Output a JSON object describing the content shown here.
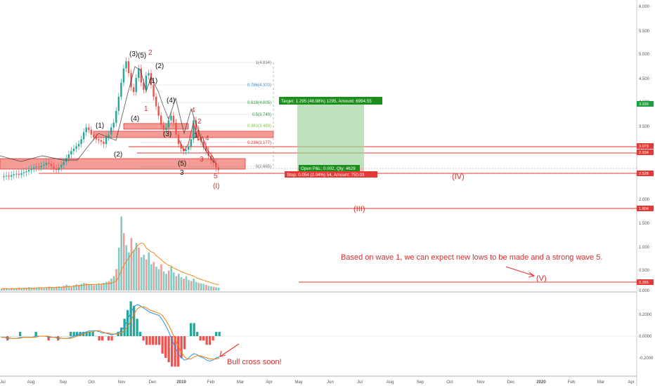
{
  "chart_data": {
    "type": "candlestick",
    "title": "",
    "colors": {
      "up": "#26a69a",
      "down": "#ef5350",
      "accent_red": "#e53935",
      "target_green": "#2e7d32",
      "ma_orange": "#f57c00",
      "macd_blue": "#2196f3"
    },
    "price_axis": {
      "ticks": [
        "6.000",
        "5.500",
        "5.000",
        "4.500",
        "4.000",
        "3.500",
        "3.000",
        "2.500",
        "2.000",
        "1.500",
        "1.000",
        "0.500",
        "0.000"
      ],
      "badges": [
        {
          "label": "3.939",
          "color": "#1b9e3e"
        },
        {
          "label": "3.073",
          "color": "#e53935"
        },
        {
          "label": "2.934",
          "color": "#e53935"
        },
        {
          "label": "2.528",
          "color": "#e53935"
        },
        {
          "label": "1.804",
          "color": "#e53935"
        },
        {
          "label": "0.265",
          "color": "#e53935"
        }
      ]
    },
    "macd_axis": {
      "ticks": [
        "0.2000",
        "0.0000",
        "-0.2000"
      ]
    },
    "time_axis": [
      "Jul",
      "Aug",
      "Sep",
      "Oct",
      "Nov",
      "Dec",
      "2019",
      "Feb",
      "Mar",
      "Apr",
      "May",
      "Jun",
      "Jul",
      "Aug",
      "Sep",
      "Oct",
      "Nov",
      "Dec",
      "2020",
      "Feb",
      "Mar",
      "Apr"
    ],
    "fib_levels": [
      {
        "label": "1(4.834)",
        "color": "#777777"
      },
      {
        "label": "0.786(4.370)",
        "color": "#4a90c2"
      },
      {
        "label": "0.618(4.005)",
        "color": "#2e9e44"
      },
      {
        "label": "0.5(3.749)",
        "color": "#2e9e44"
      },
      {
        "label": "0.382(3.493)",
        "color": "#8bc34a"
      },
      {
        "label": "0.236(3.177)",
        "color": "#e53935"
      },
      {
        "label": "0(2.665)",
        "color": "#777777"
      }
    ],
    "position": {
      "target": "Target: 1.295 (48.98%) 1295, Amount: 6994.55",
      "open": "Open P&L: 0.002, Qty: 4629",
      "stop": "Stop: 0.054 (2.04%) 54, Amount: 750.03"
    },
    "wave_labels": {
      "w3p": "(3)",
      "w5p": "(5)",
      "w2top": "2",
      "w2p": "(2)",
      "w1p": "(1)",
      "w1": "1",
      "w4p": "(4)",
      "w4p2": "(4)",
      "w3p2": "(3)",
      "w4": "4",
      "w2": "2",
      "w1b": "1",
      "w4b": "4",
      "w3b": "3",
      "w5p2": "(5)",
      "w3c": "3",
      "w5": "5",
      "wI": "(I)",
      "w1p2": "(1)",
      "w2p2": "(2)",
      "wIV": "(IV)",
      "wIII": "(III)",
      "wV": "(V)"
    },
    "annotations": {
      "wave_note": "Based on wave 1, we can expect new lows to be made and a strong wave 5.",
      "bull_cross": "Bull cross soon!"
    },
    "price_series": [
      2.4,
      2.42,
      2.43,
      2.41,
      2.44,
      2.46,
      2.47,
      2.45,
      2.48,
      2.5,
      2.52,
      2.55,
      2.58,
      2.6,
      2.62,
      2.61,
      2.64,
      2.66,
      2.7,
      2.68,
      2.63,
      2.58,
      2.55,
      2.6,
      2.66,
      2.72,
      2.8,
      2.88,
      2.95,
      3.0,
      3.05,
      3.1,
      3.2,
      3.35,
      3.45,
      3.4,
      3.3,
      3.25,
      3.2,
      3.18,
      3.15,
      3.1,
      3.25,
      3.3,
      3.45,
      3.55,
      3.8,
      4.1,
      4.4,
      4.7,
      4.85,
      4.6,
      4.3,
      4.2,
      4.5,
      4.7,
      4.4,
      4.25,
      4.55,
      4.6,
      4.35,
      4.1,
      3.9,
      3.7,
      3.5,
      3.4,
      3.45,
      3.6,
      3.7,
      3.55,
      3.3,
      3.1,
      3.0,
      2.95,
      2.98,
      3.05,
      3.2,
      3.6,
      3.4,
      3.25,
      3.15,
      3.05,
      2.95,
      2.85,
      2.75,
      2.7,
      2.6,
      2.55
    ],
    "volume_series": [
      0.04,
      0.05,
      0.04,
      0.03,
      0.05,
      0.04,
      0.05,
      0.06,
      0.05,
      0.06,
      0.05,
      0.07,
      0.06,
      0.05,
      0.06,
      0.07,
      0.06,
      0.05,
      0.07,
      0.08,
      0.07,
      0.06,
      0.08,
      0.09,
      0.08,
      0.1,
      0.12,
      0.1,
      0.09,
      0.11,
      0.13,
      0.12,
      0.14,
      0.16,
      0.15,
      0.13,
      0.12,
      0.11,
      0.13,
      0.15,
      0.14,
      0.16,
      0.18,
      0.2,
      0.25,
      0.3,
      0.45,
      0.9,
      1.55,
      1.2,
      0.95,
      0.8,
      1.1,
      0.85,
      1.0,
      0.9,
      0.7,
      0.75,
      0.65,
      0.8,
      0.55,
      0.6,
      0.5,
      0.45,
      0.55,
      0.4,
      0.35,
      0.42,
      0.5,
      0.38,
      0.3,
      0.35,
      0.28,
      0.25,
      0.3,
      0.22,
      0.2,
      0.25,
      0.18,
      0.16,
      0.15,
      0.14,
      0.12,
      0.1,
      0.09,
      0.08,
      0.07,
      0.06
    ],
    "macd_line": [
      -0.01,
      -0.01,
      -0.02,
      -0.02,
      -0.02,
      -0.02,
      -0.01,
      -0.01,
      -0.01,
      -0.01,
      -0.01,
      0.0,
      0.0,
      0.0,
      0.0,
      -0.01,
      -0.01,
      -0.01,
      -0.02,
      -0.02,
      -0.02,
      -0.02,
      -0.01,
      0.0,
      0.01,
      0.02,
      0.03,
      0.04,
      0.05,
      0.05,
      0.05,
      0.04,
      0.03,
      0.03,
      0.02,
      0.01,
      0.02,
      0.03,
      0.05,
      0.09,
      0.15,
      0.22,
      0.27,
      0.29,
      0.28,
      0.26,
      0.24,
      0.22,
      0.21,
      0.2,
      0.19,
      0.15,
      0.1,
      0.04,
      -0.03,
      -0.1,
      -0.16,
      -0.2,
      -0.22,
      -0.21,
      -0.18,
      -0.16,
      -0.17,
      -0.19,
      -0.2,
      -0.22,
      -0.23,
      -0.22,
      -0.2,
      -0.19
    ],
    "macd_signal": [
      -0.01,
      -0.01,
      -0.01,
      -0.02,
      -0.02,
      -0.02,
      -0.02,
      -0.01,
      -0.01,
      -0.01,
      -0.01,
      -0.01,
      0.0,
      0.0,
      0.0,
      0.0,
      -0.01,
      -0.01,
      -0.01,
      -0.02,
      -0.02,
      -0.02,
      -0.02,
      -0.01,
      0.0,
      0.01,
      0.02,
      0.03,
      0.04,
      0.04,
      0.05,
      0.05,
      0.04,
      0.03,
      0.03,
      0.02,
      0.02,
      0.02,
      0.03,
      0.05,
      0.09,
      0.14,
      0.2,
      0.25,
      0.27,
      0.27,
      0.26,
      0.24,
      0.23,
      0.22,
      0.21,
      0.19,
      0.15,
      0.1,
      0.04,
      -0.03,
      -0.09,
      -0.15,
      -0.19,
      -0.21,
      -0.21,
      -0.19,
      -0.18,
      -0.18,
      -0.19,
      -0.2,
      -0.21,
      -0.21,
      -0.21,
      -0.2
    ]
  }
}
